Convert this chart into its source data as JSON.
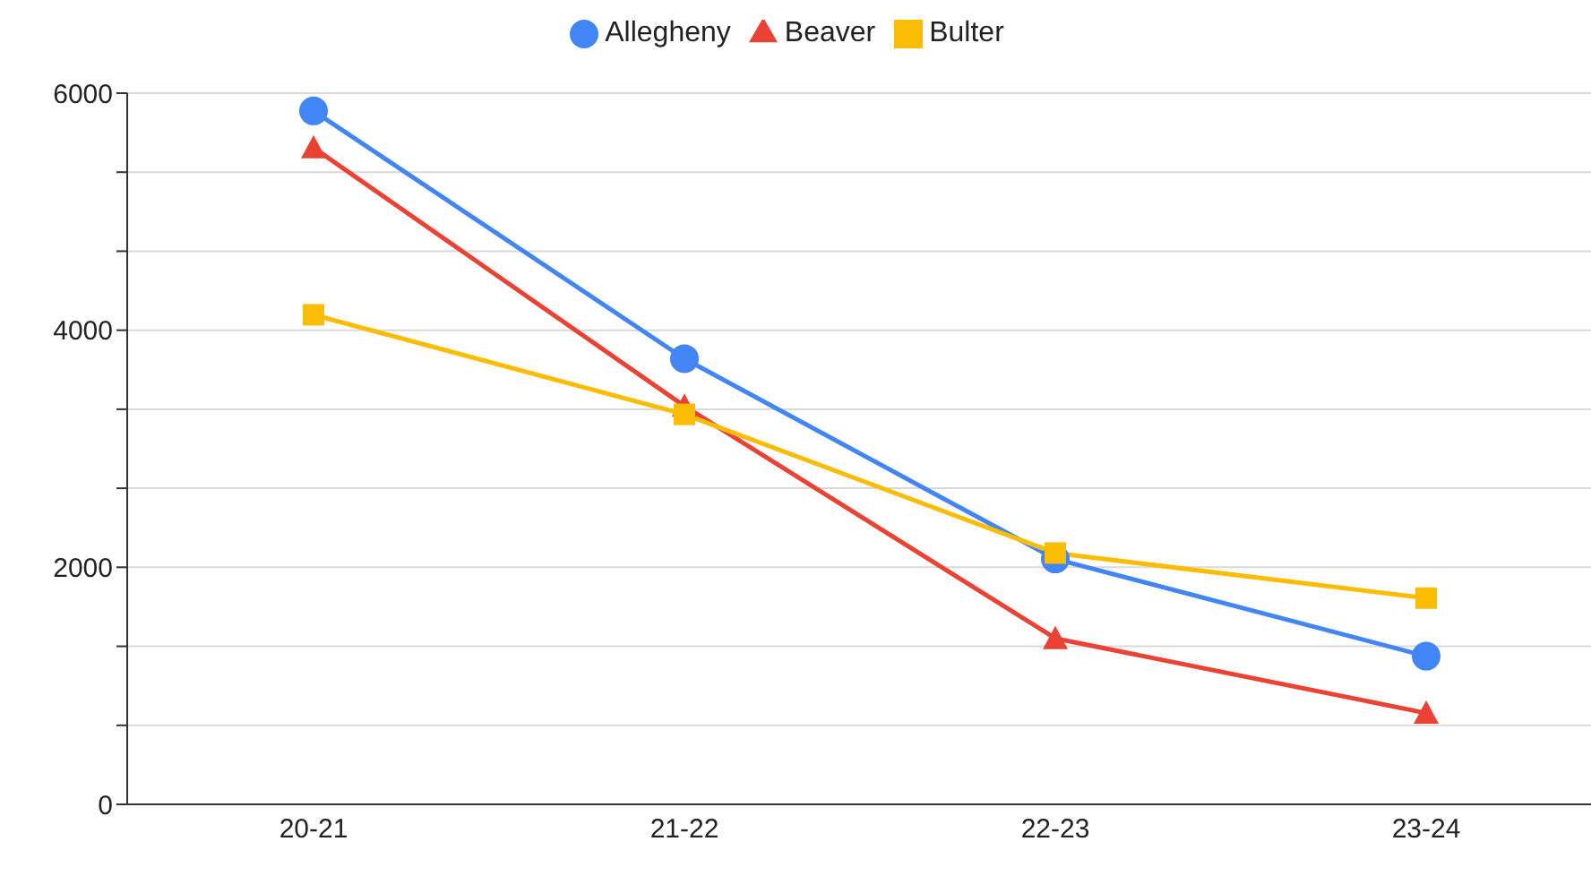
{
  "chart_data": {
    "type": "line",
    "categories": [
      "20-21",
      "21-22",
      "22-23",
      "23-24"
    ],
    "series": [
      {
        "name": "Allegheny",
        "color": "#4285f4",
        "marker": "circle",
        "values": [
          5850,
          3760,
          2070,
          1250
        ]
      },
      {
        "name": "Beaver",
        "color": "#ea4335",
        "marker": "triangle",
        "values": [
          5540,
          3360,
          1400,
          770
        ]
      },
      {
        "name": "Bulter",
        "color": "#fbbc04",
        "marker": "square",
        "values": [
          4130,
          3290,
          2120,
          1740
        ]
      }
    ],
    "ylim": [
      0,
      6000
    ],
    "yticks": [
      0,
      {
        "value": 666.67,
        "label": null
      },
      {
        "value": 1333.33,
        "label": null
      },
      2000,
      {
        "value": 2666.67,
        "label": null
      },
      {
        "value": 3333.33,
        "label": null
      },
      4000,
      {
        "value": 4666.67,
        "label": null
      },
      {
        "value": 5333.33,
        "label": null
      },
      6000
    ],
    "grid": "y",
    "legend": "top",
    "line_style": "solid"
  }
}
